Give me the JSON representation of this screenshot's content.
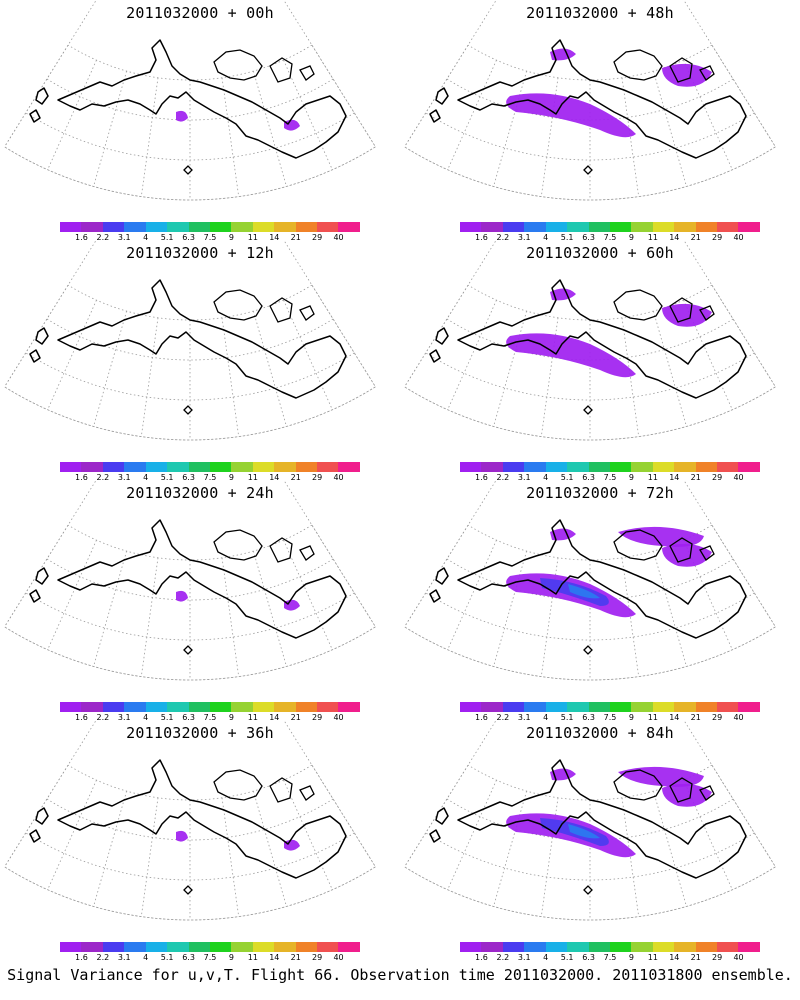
{
  "panels": [
    {
      "title": "2011032000 + 00h",
      "lead_hours": 0,
      "intensity": "minimal"
    },
    {
      "title": "2011032000 + 48h",
      "lead_hours": 48,
      "intensity": "moderate"
    },
    {
      "title": "2011032000 + 12h",
      "lead_hours": 12,
      "intensity": "none"
    },
    {
      "title": "2011032000 + 60h",
      "lead_hours": 60,
      "intensity": "moderate"
    },
    {
      "title": "2011032000 + 24h",
      "lead_hours": 24,
      "intensity": "minimal"
    },
    {
      "title": "2011032000 + 72h",
      "lead_hours": 72,
      "intensity": "strong"
    },
    {
      "title": "2011032000 + 36h",
      "lead_hours": 36,
      "intensity": "minimal"
    },
    {
      "title": "2011032000 + 84h",
      "lead_hours": 84,
      "intensity": "strong"
    }
  ],
  "colorbar": {
    "labels": [
      "1.6",
      "2.2",
      "3.1",
      "4",
      "5.1",
      "6.3",
      "7.5",
      "9",
      "11",
      "14",
      "21",
      "29",
      "40"
    ],
    "colors": [
      "#a020f0",
      "#9c27c9",
      "#4a3cf0",
      "#2a7bf0",
      "#18b0e8",
      "#1ec8b0",
      "#20c060",
      "#1ed21e",
      "#96d232",
      "#dcdc28",
      "#e6b428",
      "#f08228",
      "#f05050",
      "#f01e8c"
    ]
  },
  "caption": "Signal Variance for u,v,T. Flight 66. Observation time 2011032000. 2011031800 ensemble."
}
